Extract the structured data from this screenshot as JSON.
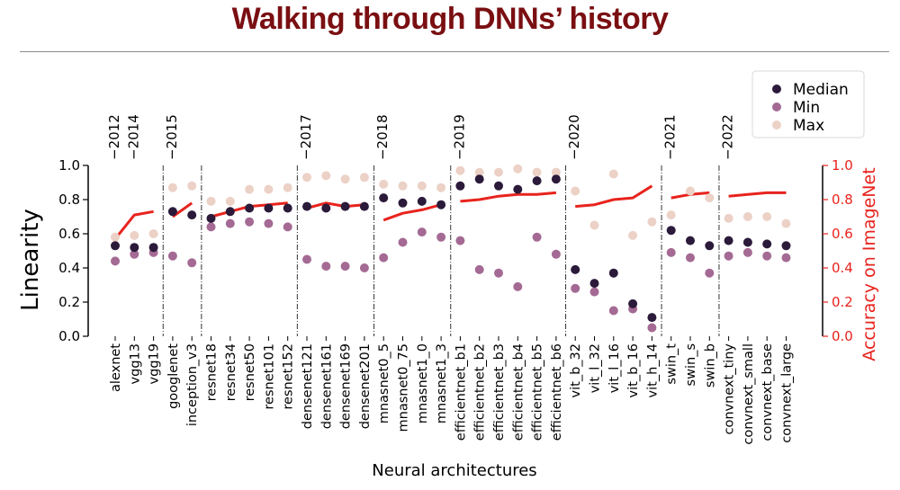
{
  "header": {
    "title": "Walking through DNNs’ history"
  },
  "chart_data": {
    "type": "scatter",
    "xlabel": "Neural architectures",
    "ylabel": "Linearity",
    "y2label": "Accuracy on ImageNet",
    "ylim": [
      0.0,
      1.0
    ],
    "y2lim": [
      0.0,
      1.0
    ],
    "yticks": [
      "0.0",
      "0.2",
      "0.4",
      "0.6",
      "0.8",
      "1.0"
    ],
    "legend": {
      "placement": "top-right",
      "entries": [
        "Median",
        "Min",
        "Max"
      ]
    },
    "colors": {
      "median": "#2b1a3a",
      "min": "#a46a94",
      "max": "#ecd1c6",
      "accuracy": "#e8231d",
      "title": "#7a0f12"
    },
    "categories": [
      "alexnet",
      "vgg13",
      "vgg19",
      "googlenet",
      "inception_v3",
      "resnet18",
      "resnet34",
      "resnet50",
      "resnet101",
      "resnet152",
      "densenet121",
      "densenet161",
      "densenet169",
      "densenet201",
      "mnasnet0_5",
      "mnasnet0_75",
      "mnasnet1_0",
      "mnasnet1_3",
      "efficientnet_b1",
      "efficientnet_b2",
      "efficientnet_b3",
      "efficientnet_b4",
      "efficientnet_b5",
      "efficientnet_b6",
      "vit_b_32",
      "vit_l_32",
      "vit_l_16",
      "vit_b_16",
      "vit_h_14",
      "swin_t",
      "swin_s",
      "swin_b",
      "convnext_tiny",
      "convnext_small",
      "convnext_base",
      "convnext_large"
    ],
    "groups": [
      {
        "year": "2012",
        "start": 0,
        "end": 0
      },
      {
        "year": "2014",
        "start": 1,
        "end": 2
      },
      {
        "year": "2015",
        "start": 3,
        "end": 4
      },
      {
        "year": "",
        "start": 5,
        "end": 9
      },
      {
        "year": "2017",
        "start": 10,
        "end": 13
      },
      {
        "year": "2018",
        "start": 14,
        "end": 17
      },
      {
        "year": "2019",
        "start": 18,
        "end": 23
      },
      {
        "year": "2020",
        "start": 24,
        "end": 28
      },
      {
        "year": "2021",
        "start": 29,
        "end": 31
      },
      {
        "year": "2022",
        "start": 32,
        "end": 35
      }
    ],
    "separators_after": [
      2,
      4,
      9,
      13,
      17,
      23,
      28,
      31
    ],
    "accuracy_segments": [
      [
        0,
        2
      ],
      [
        3,
        4
      ],
      [
        5,
        9
      ],
      [
        10,
        13
      ],
      [
        14,
        17
      ],
      [
        18,
        23
      ],
      [
        24,
        28
      ],
      [
        29,
        31
      ],
      [
        32,
        35
      ]
    ],
    "series": [
      {
        "name": "Median",
        "values": [
          0.53,
          0.52,
          0.52,
          0.73,
          0.71,
          0.69,
          0.73,
          0.75,
          0.75,
          0.75,
          0.76,
          0.75,
          0.76,
          0.76,
          0.81,
          0.78,
          0.79,
          0.77,
          0.88,
          0.92,
          0.88,
          0.86,
          0.91,
          0.92,
          0.39,
          0.31,
          0.37,
          0.19,
          0.11,
          0.62,
          0.56,
          0.53,
          0.56,
          0.55,
          0.54,
          0.53
        ]
      },
      {
        "name": "Min",
        "values": [
          0.44,
          0.48,
          0.49,
          0.47,
          0.43,
          0.64,
          0.66,
          0.67,
          0.66,
          0.64,
          0.45,
          0.41,
          0.41,
          0.4,
          0.46,
          0.55,
          0.61,
          0.58,
          0.56,
          0.39,
          0.37,
          0.29,
          0.58,
          0.48,
          0.28,
          0.26,
          0.15,
          0.16,
          0.05,
          0.49,
          0.46,
          0.37,
          0.47,
          0.49,
          0.47,
          0.46
        ]
      },
      {
        "name": "Max",
        "values": [
          0.58,
          0.59,
          0.6,
          0.87,
          0.88,
          0.79,
          0.79,
          0.86,
          0.86,
          0.87,
          0.93,
          0.94,
          0.92,
          0.93,
          0.89,
          0.88,
          0.88,
          0.87,
          0.97,
          0.96,
          0.96,
          0.98,
          0.96,
          0.96,
          0.85,
          0.65,
          0.95,
          0.59,
          0.67,
          0.71,
          0.85,
          0.81,
          0.69,
          0.7,
          0.7,
          0.66
        ]
      },
      {
        "name": "Accuracy on ImageNet",
        "axis": "right",
        "values": [
          0.57,
          0.71,
          0.73,
          0.7,
          0.78,
          0.7,
          0.73,
          0.76,
          0.77,
          0.78,
          0.75,
          0.78,
          0.76,
          0.77,
          0.68,
          0.72,
          0.74,
          0.77,
          0.79,
          0.8,
          0.82,
          0.83,
          0.83,
          0.84,
          0.76,
          0.77,
          0.8,
          0.81,
          0.88,
          0.81,
          0.83,
          0.84,
          0.82,
          0.83,
          0.84,
          0.84
        ]
      }
    ]
  }
}
